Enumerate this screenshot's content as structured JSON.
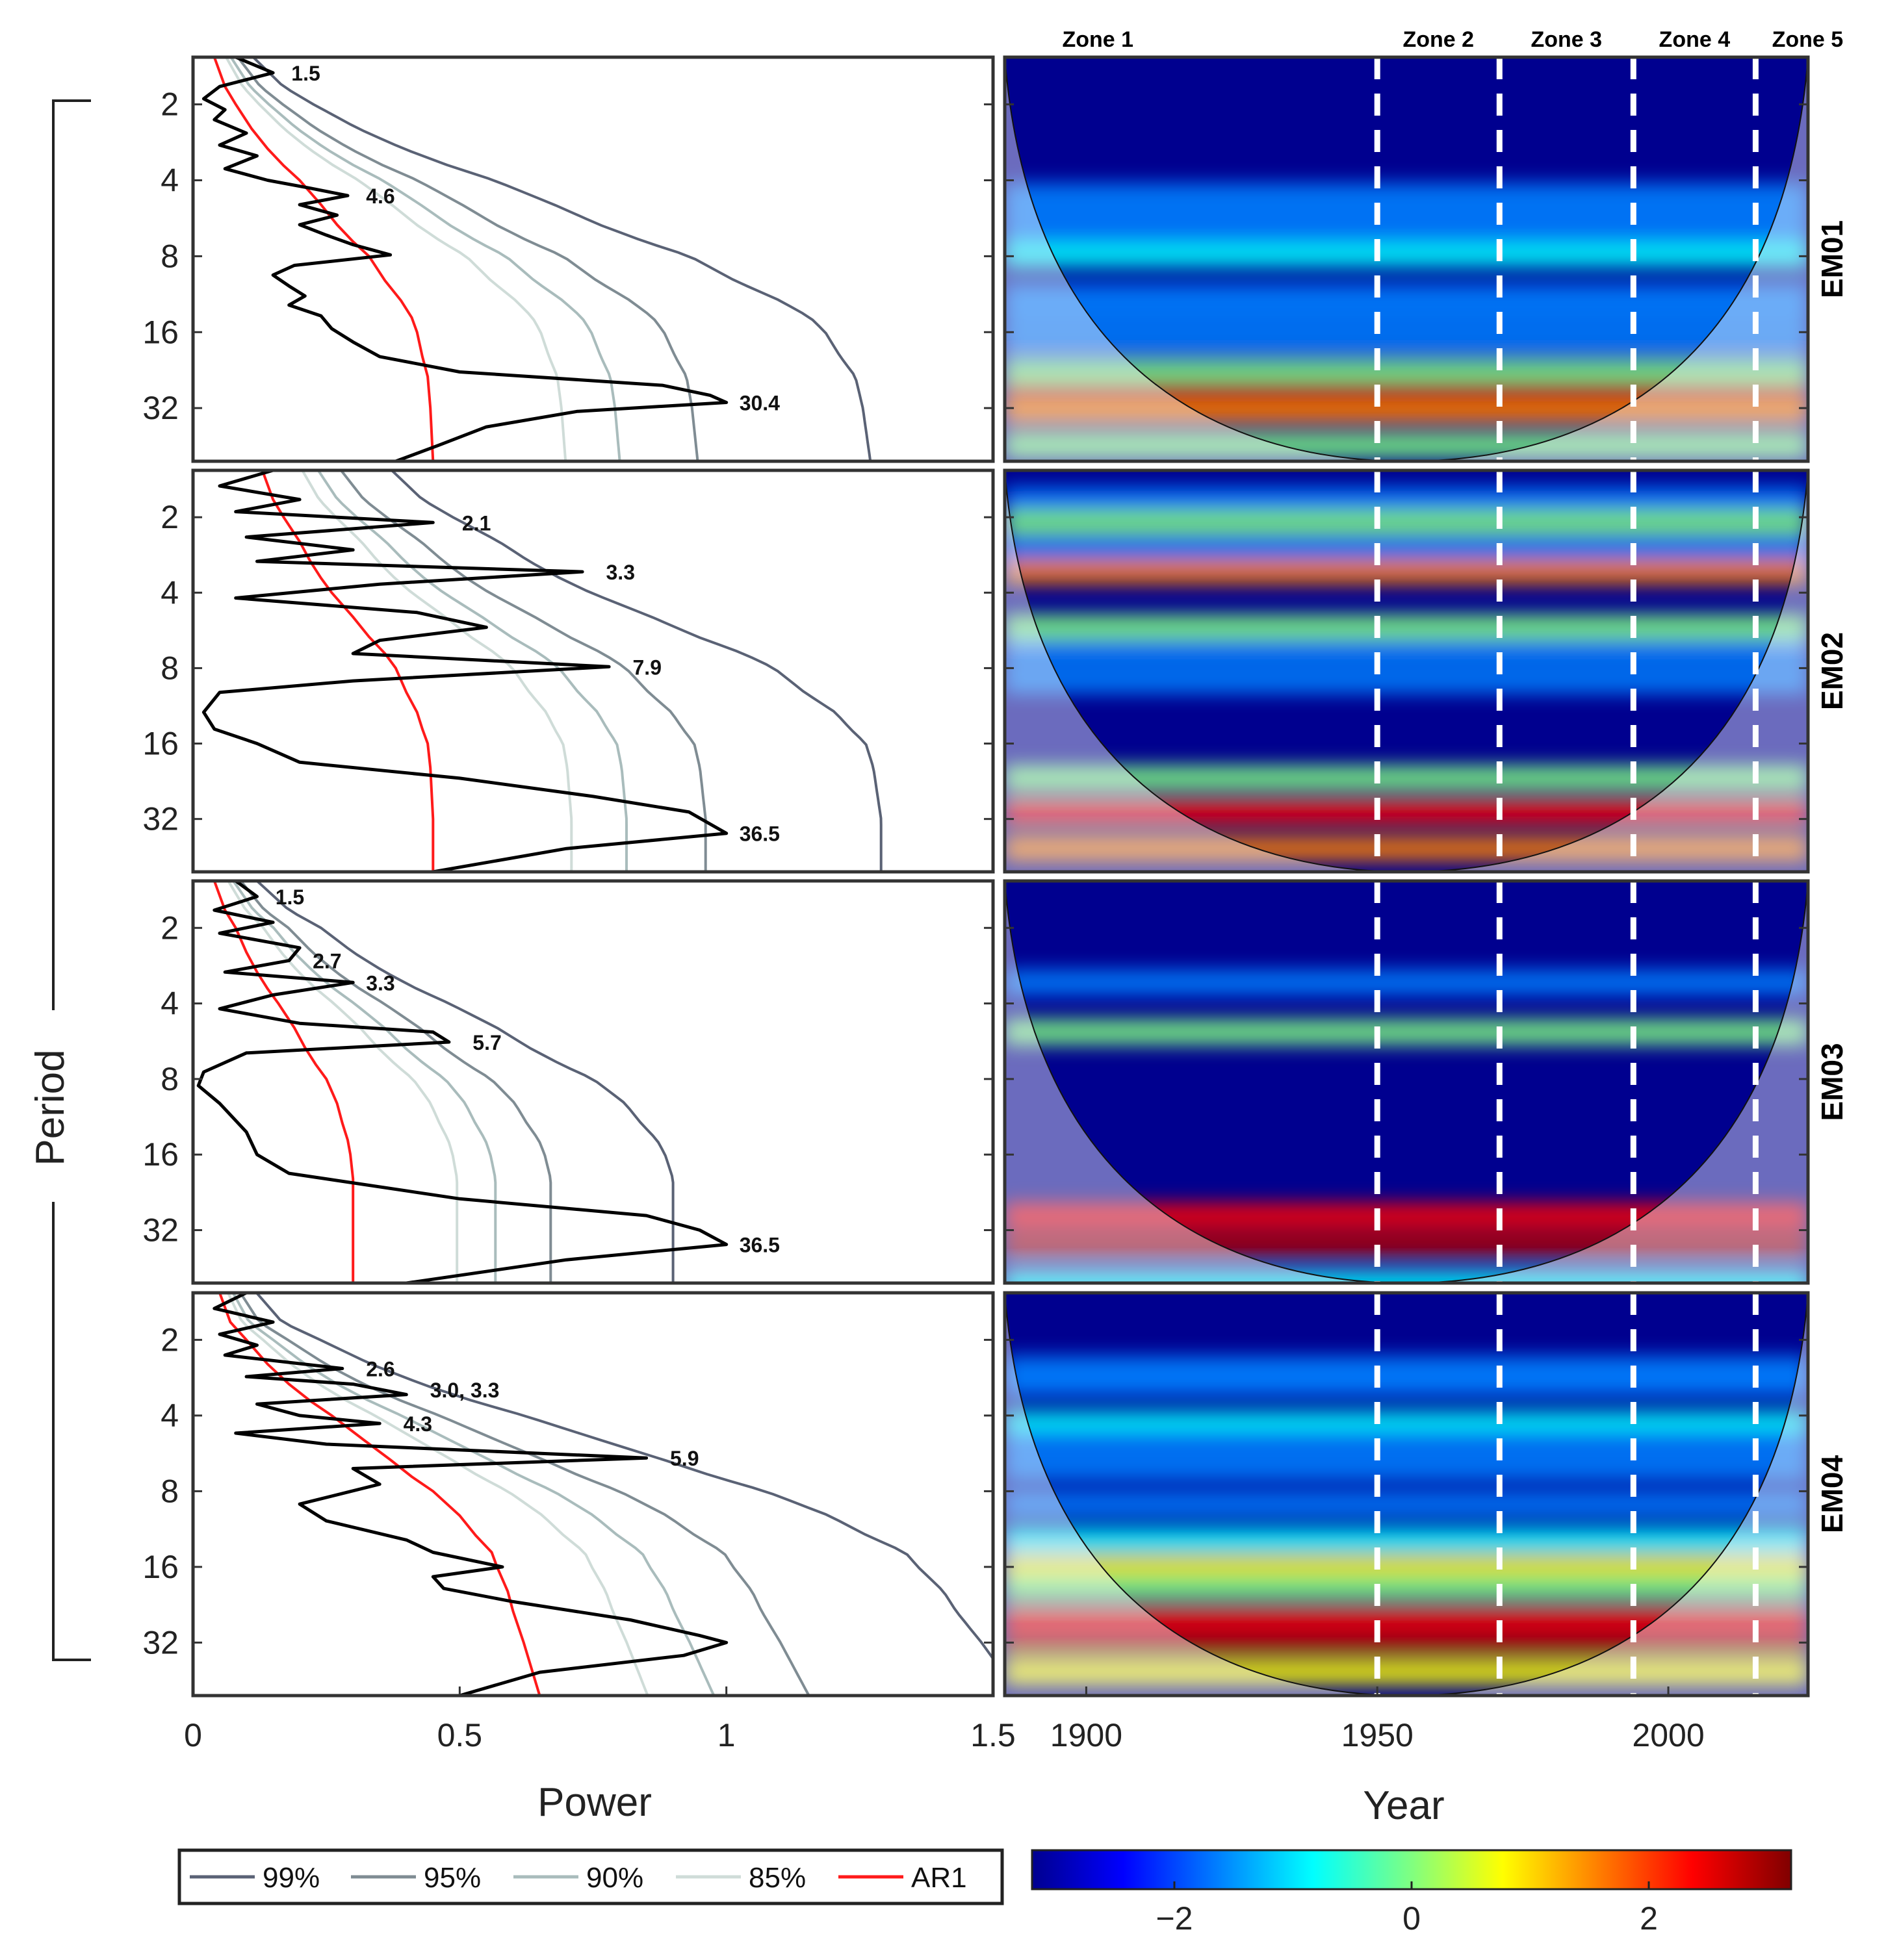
{
  "chart_data": {
    "type": "line",
    "title": "",
    "global_spectrum": {
      "xlabel": "Power",
      "ylabel": "Period",
      "xlim": [
        0,
        1.5
      ],
      "xticks": [
        "0",
        "0.5",
        "1",
        "1.5"
      ],
      "yticks": [
        "2",
        "4",
        "8",
        "16",
        "32"
      ],
      "ylim": [
        1.3,
        52
      ],
      "legend": [
        "99%",
        "95%",
        "90%",
        "85%",
        "AR1"
      ],
      "significance_colors": [
        "#5a6275",
        "#7f8c93",
        "#a9bcbc",
        "#cfdcd8",
        "#ff1a1a"
      ]
    },
    "wavelet": {
      "xlabel": "Year",
      "xlim": [
        1886,
        2024
      ],
      "xticks": [
        "1900",
        "1950",
        "2000"
      ],
      "zone_labels": [
        "Zone 1",
        "Zone 2",
        "Zone 3",
        "Zone 4",
        "Zone 5"
      ],
      "zone_boundaries": [
        1950,
        1971,
        1994,
        2015
      ],
      "colorbar_ticks": [
        "−2",
        "0",
        "2"
      ],
      "colorbar_range": [
        -3.2,
        3.2
      ]
    },
    "panels": [
      {
        "id": "EM01",
        "spectrum": [
          [
            1.3,
            0.08
          ],
          [
            1.5,
            0.15
          ],
          [
            1.7,
            0.05
          ],
          [
            1.9,
            0.02
          ],
          [
            2.1,
            0.06
          ],
          [
            2.3,
            0.04
          ],
          [
            2.6,
            0.1
          ],
          [
            2.9,
            0.05
          ],
          [
            3.2,
            0.12
          ],
          [
            3.6,
            0.06
          ],
          [
            4.0,
            0.14
          ],
          [
            4.3,
            0.22
          ],
          [
            4.6,
            0.29
          ],
          [
            5.0,
            0.2
          ],
          [
            5.5,
            0.27
          ],
          [
            6.0,
            0.2
          ],
          [
            6.6,
            0.25
          ],
          [
            7.2,
            0.3
          ],
          [
            7.9,
            0.37
          ],
          [
            8.7,
            0.19
          ],
          [
            9.5,
            0.15
          ],
          [
            10.5,
            0.18
          ],
          [
            11.5,
            0.21
          ],
          [
            12.5,
            0.18
          ],
          [
            13.8,
            0.24
          ],
          [
            15.5,
            0.26
          ],
          [
            17.5,
            0.3
          ],
          [
            20,
            0.35
          ],
          [
            23,
            0.5
          ],
          [
            26,
            0.88
          ],
          [
            28.5,
            0.97
          ],
          [
            30.4,
            1.0
          ],
          [
            33,
            0.72
          ],
          [
            38,
            0.55
          ],
          [
            45,
            0.46
          ],
          [
            52,
            0.38
          ]
        ],
        "ar1": [
          [
            1.3,
            0.04
          ],
          [
            1.7,
            0.06
          ],
          [
            2.0,
            0.08
          ],
          [
            2.5,
            0.11
          ],
          [
            3.0,
            0.14
          ],
          [
            3.5,
            0.17
          ],
          [
            4.0,
            0.2
          ],
          [
            5.0,
            0.24
          ],
          [
            6.0,
            0.27
          ],
          [
            7.0,
            0.3
          ],
          [
            8.0,
            0.33
          ],
          [
            10,
            0.36
          ],
          [
            12,
            0.39
          ],
          [
            14,
            0.41
          ],
          [
            16,
            0.42
          ],
          [
            20,
            0.43
          ],
          [
            24,
            0.44
          ],
          [
            32,
            0.445
          ],
          [
            52,
            0.45
          ]
        ],
        "peaks": [
          {
            "label": "1.5",
            "period": 1.5,
            "power": 0.16
          },
          {
            "label": "4.6",
            "period": 4.6,
            "power": 0.3
          },
          {
            "label": "30.4",
            "period": 30.4,
            "power": 1.0
          }
        ],
        "sig99_scale": 1.27
      },
      {
        "id": "EM02",
        "spectrum": [
          [
            1.3,
            0.15
          ],
          [
            1.5,
            0.05
          ],
          [
            1.7,
            0.2
          ],
          [
            1.9,
            0.08
          ],
          [
            2.1,
            0.45
          ],
          [
            2.4,
            0.1
          ],
          [
            2.7,
            0.3
          ],
          [
            3.0,
            0.12
          ],
          [
            3.3,
            0.73
          ],
          [
            3.7,
            0.35
          ],
          [
            4.2,
            0.08
          ],
          [
            4.8,
            0.42
          ],
          [
            5.5,
            0.55
          ],
          [
            6.2,
            0.35
          ],
          [
            7.0,
            0.3
          ],
          [
            7.9,
            0.78
          ],
          [
            9.0,
            0.3
          ],
          [
            10,
            0.05
          ],
          [
            12,
            0.02
          ],
          [
            14,
            0.04
          ],
          [
            16,
            0.12
          ],
          [
            19,
            0.2
          ],
          [
            22,
            0.5
          ],
          [
            26,
            0.75
          ],
          [
            30,
            0.93
          ],
          [
            36.5,
            1.0
          ],
          [
            42,
            0.7
          ],
          [
            52,
            0.45
          ]
        ],
        "ar1": [
          [
            1.3,
            0.13
          ],
          [
            1.7,
            0.15
          ],
          [
            2.0,
            0.17
          ],
          [
            2.5,
            0.2
          ],
          [
            3.0,
            0.22
          ],
          [
            3.5,
            0.24
          ],
          [
            4.0,
            0.26
          ],
          [
            5.0,
            0.3
          ],
          [
            6.0,
            0.33
          ],
          [
            7.0,
            0.36
          ],
          [
            8.0,
            0.38
          ],
          [
            10,
            0.4
          ],
          [
            12,
            0.42
          ],
          [
            14,
            0.43
          ],
          [
            16,
            0.44
          ],
          [
            20,
            0.445
          ],
          [
            32,
            0.45
          ],
          [
            52,
            0.45
          ]
        ],
        "peaks": [
          {
            "label": "2.1",
            "period": 2.1,
            "power": 0.48
          },
          {
            "label": "3.3",
            "period": 3.3,
            "power": 0.75
          },
          {
            "label": "7.9",
            "period": 7.9,
            "power": 0.8
          },
          {
            "label": "36.5",
            "period": 36.5,
            "power": 1.0
          }
        ],
        "sig99_scale": 1.29
      },
      {
        "id": "EM03",
        "spectrum": [
          [
            1.3,
            0.08
          ],
          [
            1.5,
            0.12
          ],
          [
            1.7,
            0.04
          ],
          [
            1.9,
            0.15
          ],
          [
            2.1,
            0.05
          ],
          [
            2.4,
            0.2
          ],
          [
            2.7,
            0.18
          ],
          [
            3.0,
            0.06
          ],
          [
            3.3,
            0.3
          ],
          [
            3.7,
            0.15
          ],
          [
            4.2,
            0.05
          ],
          [
            4.8,
            0.2
          ],
          [
            5.2,
            0.45
          ],
          [
            5.7,
            0.48
          ],
          [
            6.3,
            0.1
          ],
          [
            7.5,
            0.02
          ],
          [
            8.5,
            0.01
          ],
          [
            10,
            0.05
          ],
          [
            13,
            0.1
          ],
          [
            16,
            0.12
          ],
          [
            19,
            0.18
          ],
          [
            24,
            0.5
          ],
          [
            28,
            0.85
          ],
          [
            32,
            0.95
          ],
          [
            36.5,
            1.0
          ],
          [
            42,
            0.7
          ],
          [
            52,
            0.4
          ]
        ],
        "ar1": [
          [
            1.3,
            0.04
          ],
          [
            1.7,
            0.06
          ],
          [
            2.0,
            0.08
          ],
          [
            2.5,
            0.1
          ],
          [
            3.0,
            0.12
          ],
          [
            3.5,
            0.14
          ],
          [
            4.0,
            0.16
          ],
          [
            5.0,
            0.19
          ],
          [
            6.0,
            0.21
          ],
          [
            7.0,
            0.23
          ],
          [
            8.0,
            0.25
          ],
          [
            10,
            0.27
          ],
          [
            12,
            0.28
          ],
          [
            14,
            0.29
          ],
          [
            16,
            0.295
          ],
          [
            20,
            0.3
          ],
          [
            32,
            0.3
          ],
          [
            52,
            0.3
          ]
        ],
        "peaks": [
          {
            "label": "1.5",
            "period": 1.5,
            "power": 0.13
          },
          {
            "label": "2.7",
            "period": 2.7,
            "power": 0.2
          },
          {
            "label": "3.3",
            "period": 3.3,
            "power": 0.3
          },
          {
            "label": "5.7",
            "period": 5.7,
            "power": 0.5
          },
          {
            "label": "36.5",
            "period": 36.5,
            "power": 1.0
          }
        ],
        "sig99_scale": 0.9
      },
      {
        "id": "EM04",
        "spectrum": [
          [
            1.3,
            0.1
          ],
          [
            1.5,
            0.04
          ],
          [
            1.7,
            0.15
          ],
          [
            1.9,
            0.05
          ],
          [
            2.1,
            0.12
          ],
          [
            2.3,
            0.06
          ],
          [
            2.6,
            0.28
          ],
          [
            2.8,
            0.1
          ],
          [
            3.0,
            0.3
          ],
          [
            3.3,
            0.4
          ],
          [
            3.6,
            0.12
          ],
          [
            4.0,
            0.2
          ],
          [
            4.3,
            0.35
          ],
          [
            4.7,
            0.08
          ],
          [
            5.2,
            0.25
          ],
          [
            5.9,
            0.85
          ],
          [
            6.5,
            0.3
          ],
          [
            7.5,
            0.35
          ],
          [
            9,
            0.2
          ],
          [
            10.5,
            0.25
          ],
          [
            12.5,
            0.4
          ],
          [
            14,
            0.45
          ],
          [
            16,
            0.58
          ],
          [
            17.5,
            0.45
          ],
          [
            19.5,
            0.47
          ],
          [
            22,
            0.6
          ],
          [
            26,
            0.82
          ],
          [
            30,
            0.95
          ],
          [
            32,
            1.0
          ],
          [
            36,
            0.92
          ],
          [
            42,
            0.65
          ],
          [
            52,
            0.5
          ]
        ],
        "ar1": [
          [
            1.3,
            0.05
          ],
          [
            1.7,
            0.07
          ],
          [
            2.0,
            0.1
          ],
          [
            2.5,
            0.14
          ],
          [
            3.0,
            0.18
          ],
          [
            3.5,
            0.22
          ],
          [
            4.0,
            0.26
          ],
          [
            5.0,
            0.32
          ],
          [
            6.0,
            0.37
          ],
          [
            7.0,
            0.41
          ],
          [
            8.0,
            0.45
          ],
          [
            10,
            0.5
          ],
          [
            12,
            0.53
          ],
          [
            14,
            0.56
          ],
          [
            16,
            0.57
          ],
          [
            20,
            0.59
          ],
          [
            24,
            0.6
          ],
          [
            32,
            0.62
          ],
          [
            52,
            0.65
          ]
        ],
        "peaks": [
          {
            "label": "2.6",
            "period": 2.6,
            "power": 0.3
          },
          {
            "label": "3.0, 3.3",
            "period": 3.15,
            "power": 0.42
          },
          {
            "label": "4.3",
            "period": 4.3,
            "power": 0.37
          },
          {
            "label": "5.9",
            "period": 5.9,
            "power": 0.87
          }
        ],
        "sig99_scale": 1.55
      }
    ]
  },
  "y_axis_label": "Period",
  "x_axis_label_left": "Power",
  "x_axis_label_right": "Year"
}
